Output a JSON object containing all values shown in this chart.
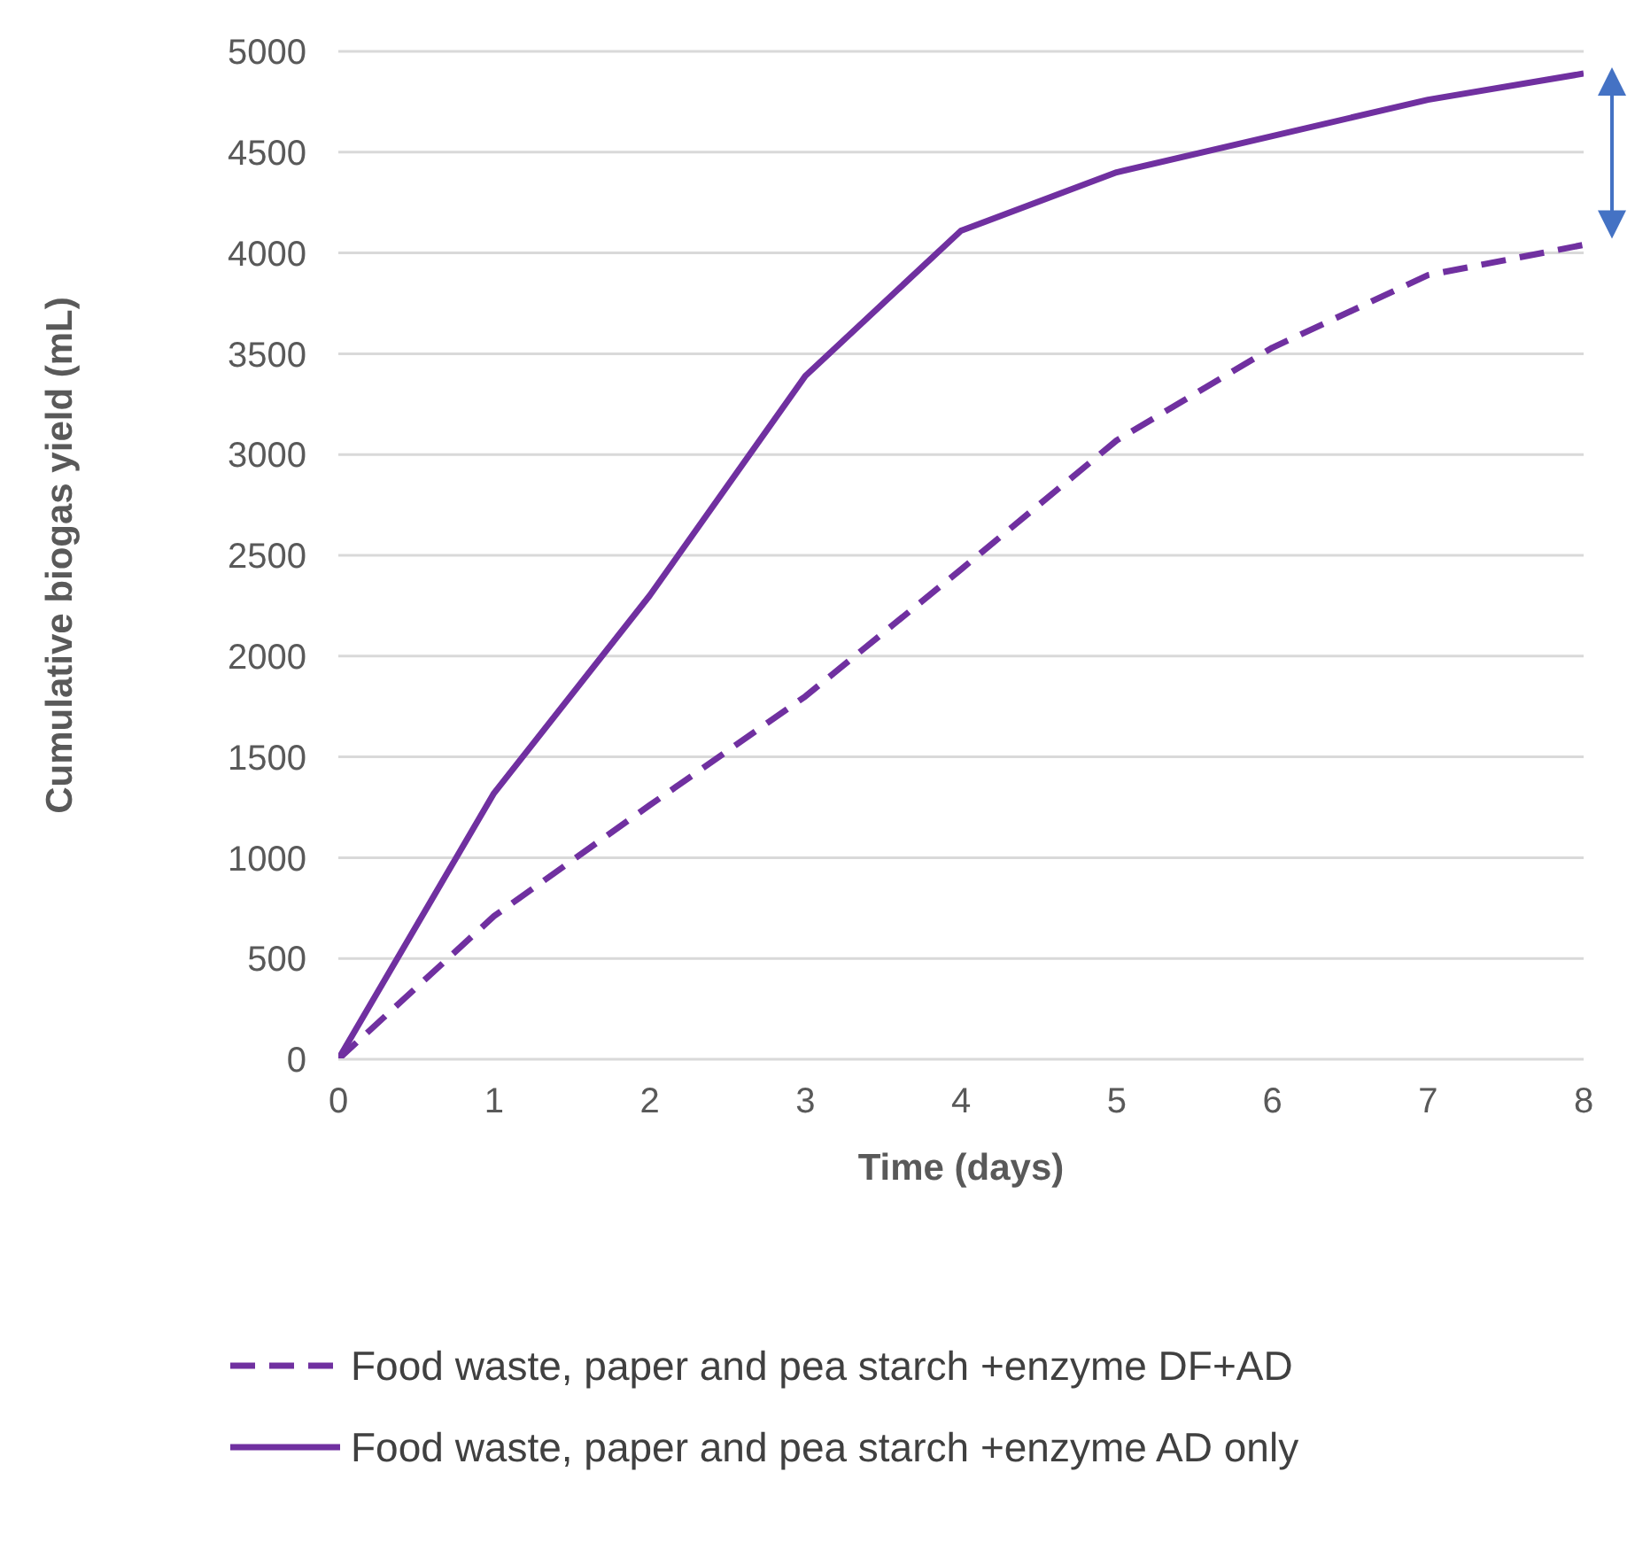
{
  "chart_data": {
    "type": "line",
    "xlabel": "Time (days)",
    "ylabel": "Cumulative biogas yield (mL)",
    "x": [
      0,
      1,
      2,
      3,
      4,
      5,
      6,
      7,
      8
    ],
    "series": [
      {
        "name": "Food waste, paper and pea starch +enzyme DF+AD",
        "color": "#7030a0",
        "line_style": "dashed",
        "values": [
          0,
          710,
          1260,
          1800,
          2430,
          3070,
          3530,
          3890,
          4040
        ]
      },
      {
        "name": "Food waste, paper and pea starch +enzyme AD only",
        "color": "#7030a0",
        "line_style": "solid",
        "values": [
          0,
          1320,
          2300,
          3390,
          4110,
          4400,
          4580,
          4760,
          4890
        ]
      }
    ],
    "xlim": [
      0,
      8
    ],
    "xticks": [
      0,
      1,
      2,
      3,
      4,
      5,
      6,
      7,
      8
    ],
    "ylim": [
      0,
      5000
    ],
    "yticks": [
      0,
      500,
      1000,
      1500,
      2000,
      2500,
      3000,
      3500,
      4000,
      4500,
      5000
    ],
    "grid": "y",
    "legend": "bottom",
    "marker": "none"
  }
}
